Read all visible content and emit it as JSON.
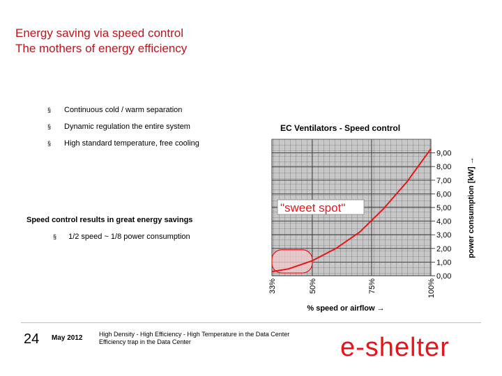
{
  "header": {
    "title": "Energy saving via speed control",
    "subtitle": "The mothers of energy efficiency"
  },
  "bullets": [
    {
      "marker": "§",
      "text": "Continuous cold / warm separation"
    },
    {
      "marker": "§",
      "text": "Dynamic regulation the entire system"
    },
    {
      "marker": "§",
      "text": "High standard temperature, free cooling"
    }
  ],
  "results": {
    "heading": "Speed control results in great energy savings",
    "marker": "§",
    "item": "1/2 speed ~ 1/8 power consumption"
  },
  "chart_data": {
    "type": "line",
    "title": "EC Ventilators - Speed control",
    "xlabel": "% speed or airflow →",
    "ylabel": "power consumption [kW] →",
    "x_ticks": [
      {
        "value": 33,
        "label": "33%"
      },
      {
        "value": 50,
        "label": "50%"
      },
      {
        "value": 75,
        "label": "75%"
      },
      {
        "value": 100,
        "label": "100%"
      }
    ],
    "y_ticks": [
      "0,00",
      "1,00",
      "2,00",
      "3,00",
      "4,00",
      "5,00",
      "6,00",
      "7,00",
      "8,00",
      "9,00"
    ],
    "ylim": [
      0,
      10
    ],
    "xlim": [
      33,
      100
    ],
    "grid": true,
    "series": [
      {
        "color": "#e8141a",
        "x": [
          33,
          40,
          50,
          60,
          70,
          80,
          90,
          95,
          100
        ],
        "y": [
          0.3,
          0.5,
          1.1,
          2.0,
          3.2,
          4.9,
          6.9,
          8.1,
          9.3
        ]
      }
    ],
    "annotations": [
      {
        "text": "\"sweet spot\"",
        "x": 33,
        "y": 5.0,
        "color": "#e8141a"
      }
    ],
    "highlight": {
      "x_range": [
        33,
        50
      ],
      "y_range": [
        0.2,
        1.9
      ],
      "color": "#e8141a"
    }
  },
  "footer": {
    "page_number": "24",
    "date": "May 2012",
    "line1": "High Density - High Efficiency - High Temperature in the Data Center",
    "line2": "Efficiency trap in the Data Center",
    "logo_text": "e-shelter"
  },
  "colors": {
    "accent": "#c0141a",
    "grid_bg": "#c8c8c8"
  }
}
